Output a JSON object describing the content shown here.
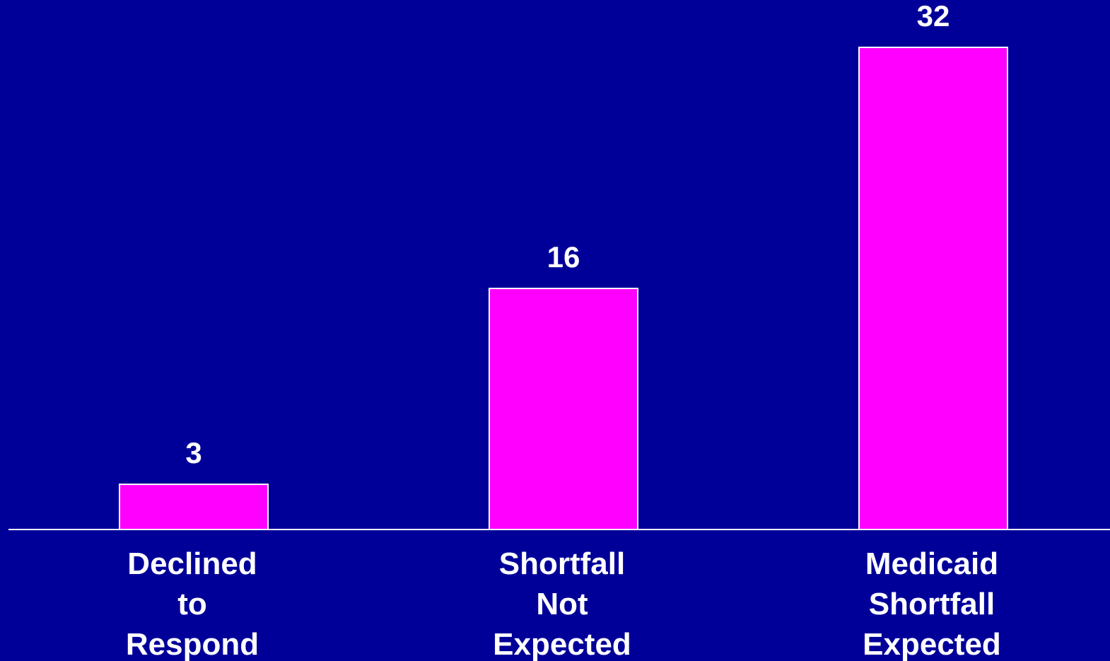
{
  "colors": {
    "background": "#000099",
    "bar": "#ff00ff",
    "bar_border": "#ffffff",
    "axis": "#ffffff",
    "text": "#ffffff"
  },
  "chart_data": {
    "type": "bar",
    "categories": [
      [
        "Declined",
        "to",
        "Respond"
      ],
      [
        "Shortfall",
        "Not",
        "Expected"
      ],
      [
        "Medicaid",
        "Shortfall",
        "Expected"
      ]
    ],
    "values": [
      3,
      16,
      32
    ],
    "data_labels": [
      "3",
      "16",
      "32"
    ],
    "title": "",
    "xlabel": "",
    "ylabel": "",
    "ylim": [
      0,
      32
    ],
    "grid": false,
    "legend": "none"
  }
}
